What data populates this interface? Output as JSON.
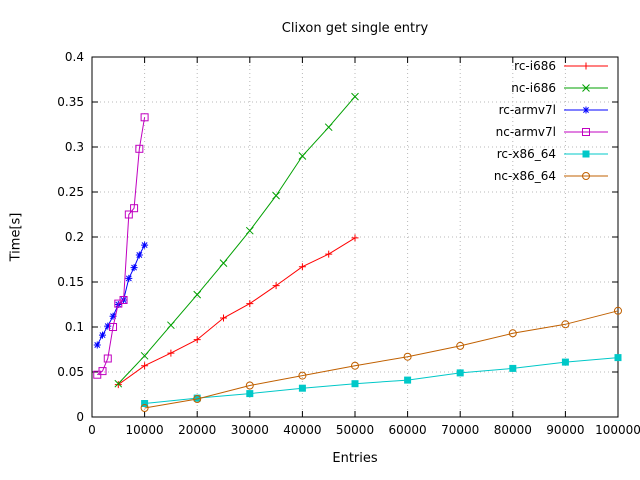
{
  "chart_data": {
    "type": "line",
    "title": "Clixon get single entry",
    "xlabel": "Entries",
    "ylabel": "Time[s]",
    "xlim": [
      0,
      100000
    ],
    "ylim": [
      0,
      0.4
    ],
    "grid": true,
    "legend_position": "top-right-inside",
    "xticks": {
      "values": [
        0,
        10000,
        20000,
        30000,
        40000,
        50000,
        60000,
        70000,
        80000,
        90000,
        100000
      ],
      "labels": [
        "0",
        "10000",
        "20000",
        "30000",
        "40000",
        "50000",
        "60000",
        "70000",
        "80000",
        "90000",
        "100000"
      ]
    },
    "yticks": {
      "values": [
        0,
        0.05,
        0.1,
        0.15,
        0.2,
        0.25,
        0.3,
        0.35,
        0.4
      ],
      "labels": [
        "0",
        "0.05",
        "0.1",
        "0.15",
        "0.2",
        "0.25",
        "0.3",
        "0.35",
        "0.4"
      ]
    },
    "series": [
      {
        "name": "rc-i686",
        "color": "#ff0000",
        "marker": "plus",
        "x": [
          5000,
          10000,
          15000,
          20000,
          25000,
          30000,
          35000,
          40000,
          45000,
          50000
        ],
        "y": [
          0.036,
          0.057,
          0.071,
          0.086,
          0.11,
          0.126,
          0.146,
          0.167,
          0.181,
          0.199
        ]
      },
      {
        "name": "nc-i686",
        "color": "#00a000",
        "marker": "cross",
        "x": [
          5000,
          10000,
          15000,
          20000,
          25000,
          30000,
          35000,
          40000,
          45000,
          50000
        ],
        "y": [
          0.037,
          0.068,
          0.102,
          0.136,
          0.171,
          0.207,
          0.246,
          0.29,
          0.322,
          0.356
        ]
      },
      {
        "name": "rc-armv7l",
        "color": "#0000ff",
        "marker": "asterisk",
        "x": [
          1000,
          2000,
          3000,
          4000,
          5000,
          6000,
          7000,
          8000,
          9000,
          10000
        ],
        "y": [
          0.08,
          0.091,
          0.101,
          0.112,
          0.125,
          0.13,
          0.154,
          0.166,
          0.18,
          0.191
        ]
      },
      {
        "name": "nc-armv7l",
        "color": "#c000c0",
        "marker": "square-open",
        "x": [
          1000,
          2000,
          3000,
          4000,
          5000,
          6000,
          7000,
          8000,
          9000,
          10000
        ],
        "y": [
          0.047,
          0.051,
          0.065,
          0.1,
          0.126,
          0.13,
          0.225,
          0.232,
          0.298,
          0.333
        ]
      },
      {
        "name": "rc-x86_64",
        "color": "#00c8c8",
        "marker": "square-filled",
        "x": [
          10000,
          20000,
          30000,
          40000,
          50000,
          60000,
          70000,
          80000,
          90000,
          100000
        ],
        "y": [
          0.015,
          0.021,
          0.026,
          0.032,
          0.037,
          0.041,
          0.049,
          0.054,
          0.061,
          0.066
        ]
      },
      {
        "name": "nc-x86_64",
        "color": "#c06000",
        "marker": "circle-open",
        "x": [
          10000,
          20000,
          30000,
          40000,
          50000,
          60000,
          70000,
          80000,
          90000,
          100000
        ],
        "y": [
          0.01,
          0.02,
          0.035,
          0.046,
          0.057,
          0.067,
          0.079,
          0.093,
          0.103,
          0.118
        ]
      }
    ]
  }
}
